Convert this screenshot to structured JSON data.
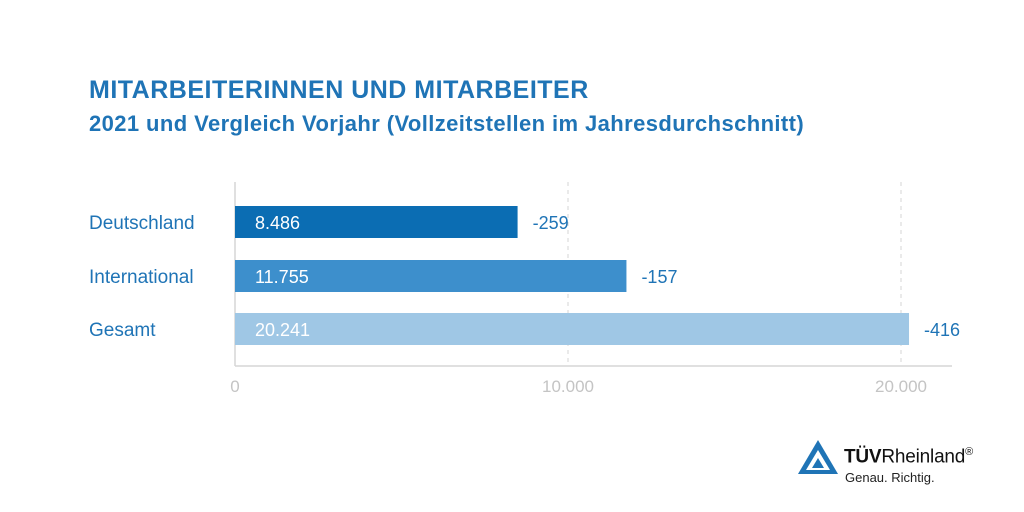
{
  "header": {
    "title": "MITARBEITERINNEN UND MITARBEITER",
    "subtitle": "2021 und Vergleich Vorjahr (Vollzeitstellen im Jahresdurchschnitt)"
  },
  "chart_data": {
    "type": "bar",
    "orientation": "horizontal",
    "title": "MITARBEITERINNEN UND MITARBEITER",
    "subtitle": "2021 und Vergleich Vorjahr (Vollzeitstellen im Jahresdurchschnitt)",
    "categories": [
      "Deutschland",
      "International",
      "Gesamt"
    ],
    "values": [
      8486,
      11755,
      20241
    ],
    "value_labels": [
      "8.486",
      "11.755",
      "20.241"
    ],
    "changes": [
      "-259",
      "-157",
      "-416"
    ],
    "bar_colors": [
      "#0b6db3",
      "#3d8fcc",
      "#9fc7e5"
    ],
    "xlim": [
      0,
      21500
    ],
    "x_ticks": [
      0,
      10000,
      20000
    ],
    "x_tick_labels": [
      "0",
      "10.000",
      "20.000"
    ],
    "grid": "vertical-dashed",
    "xlabel": "",
    "ylabel": ""
  },
  "colors": {
    "accent": "#1f74b6",
    "axis": "#d5d5d5",
    "tick_text": "#c4c4c4"
  },
  "logo": {
    "brand_bold": "TÜV",
    "brand_regular": "Rheinland",
    "registered": "®",
    "tagline": "Genau. Richtig."
  }
}
